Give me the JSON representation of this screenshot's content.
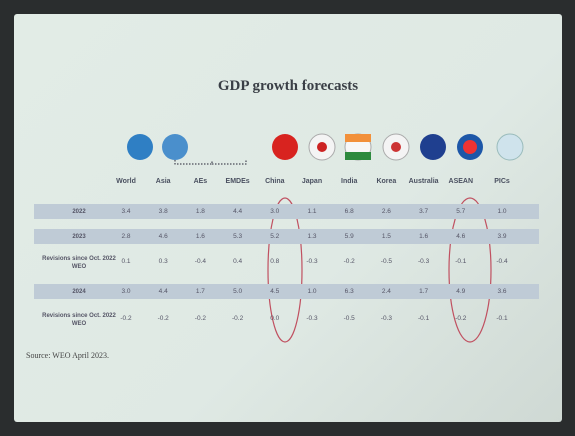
{
  "title": "GDP growth forecasts",
  "table": {
    "columns": [
      "World",
      "Asia",
      "AEs",
      "EMDEs",
      "China",
      "Japan",
      "India",
      "Korea",
      "Australia",
      "ASEAN",
      "PICs"
    ],
    "rows": [
      {
        "label": "2022",
        "cells": [
          "3.4",
          "3.8",
          "1.8",
          "4.4",
          "3.0",
          "1.1",
          "6.8",
          "2.6",
          "3.7",
          "5.7",
          "1.0"
        ]
      },
      {
        "label": "2023",
        "cells": [
          "2.8",
          "4.6",
          "1.6",
          "5.3",
          "5.2",
          "1.3",
          "5.9",
          "1.5",
          "1.6",
          "4.6",
          "3.9"
        ]
      },
      {
        "label": "Revisions since Oct. 2022 WEO",
        "cells": [
          "0.1",
          "0.3",
          "-0.4",
          "0.4",
          "0.8",
          "-0.3",
          "-0.2",
          "-0.5",
          "-0.3",
          "-0.1",
          "-0.4"
        ]
      },
      {
        "label": "2024",
        "cells": [
          "3.0",
          "4.4",
          "1.7",
          "5.0",
          "4.5",
          "1.0",
          "6.3",
          "2.4",
          "1.7",
          "4.9",
          "3.6"
        ]
      },
      {
        "label": "Revisions since Oct. 2022 WEO",
        "cells": [
          "-0.2",
          "-0.2",
          "-0.2",
          "-0.2",
          "0.0",
          "-0.3",
          "-0.5",
          "-0.3",
          "-0.1",
          "-0.2",
          "-0.1"
        ]
      }
    ]
  },
  "source": "Source: WEO April 2023."
}
